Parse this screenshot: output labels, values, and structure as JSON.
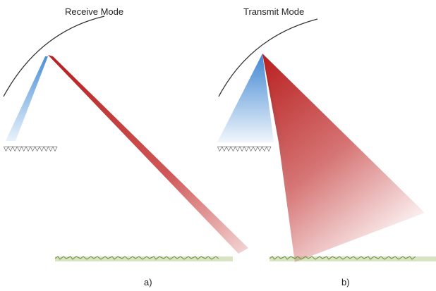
{
  "panels": [
    {
      "title": "Receive Mode",
      "caption": "a)"
    },
    {
      "title": "Transmit Mode",
      "caption": "b)"
    }
  ],
  "colors": {
    "receive_beam": "#4a90d9",
    "transmit_beam": "#c0282a",
    "reflector_arc": "#333333",
    "feed_elements": "#222222",
    "ground": "#6b8f3a"
  },
  "icons": [
    "reflector-arc",
    "feed-array",
    "beam",
    "ground-strip"
  ]
}
